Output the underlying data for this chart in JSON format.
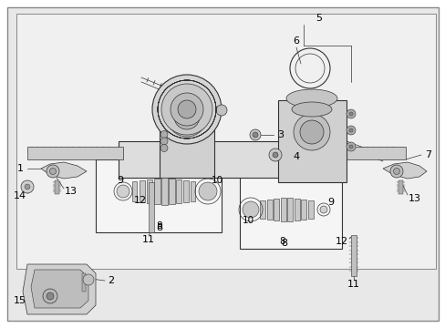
{
  "bg_outer": "#ffffff",
  "bg_inner": "#f0f0f0",
  "line_color": "#333333",
  "label_color": "#000000",
  "border_color": "#888888",
  "fig_w": 4.89,
  "fig_h": 3.6,
  "dpi": 100
}
